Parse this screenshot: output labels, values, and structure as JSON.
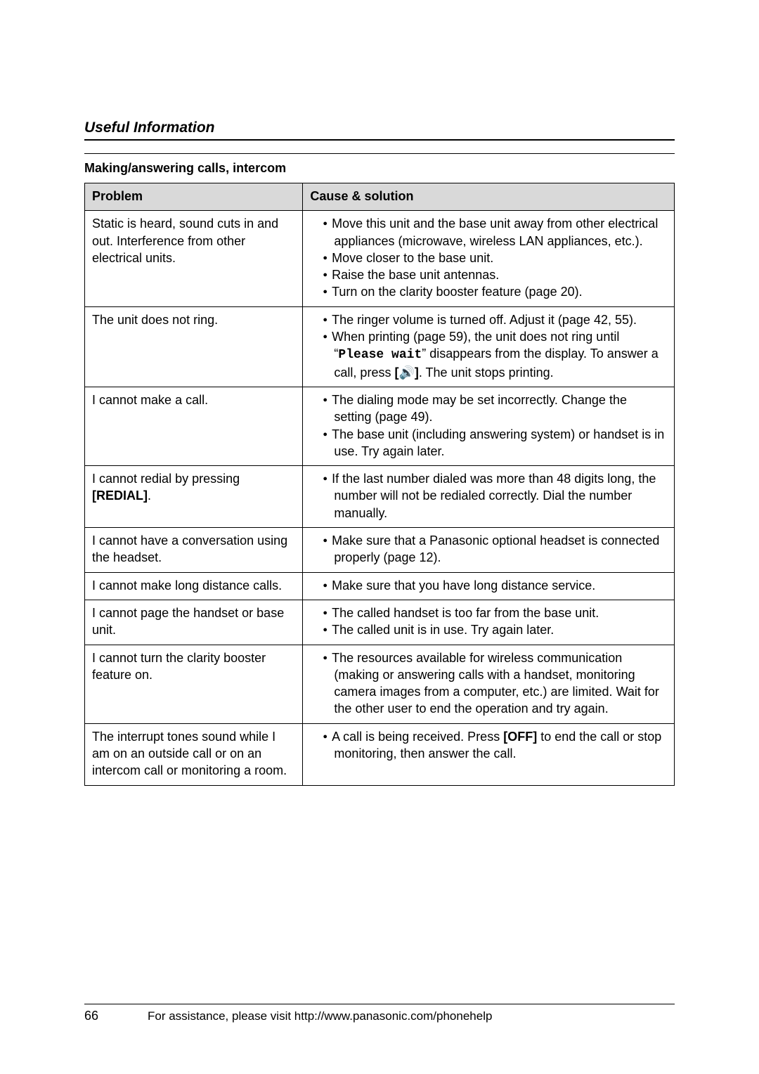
{
  "header": {
    "section_title": "Useful Information"
  },
  "subheading": "Making/answering calls, intercom",
  "table": {
    "headers": {
      "problem": "Problem",
      "cause": "Cause & solution"
    },
    "rows": [
      {
        "problem": "Static is heard, sound cuts in and out. Interference from other electrical units.",
        "cause": [
          "Move this unit and the base unit away from other electrical appliances (microwave, wireless LAN appliances, etc.).",
          "Move closer to the base unit.",
          "Raise the base unit antennas.",
          "Turn on the clarity booster feature (page 20)."
        ]
      },
      {
        "problem": "The unit does not ring.",
        "cause": [
          "The ringer volume is turned off. Adjust it (page 42, 55).",
          "When printing (page 59), the unit does not ring until “<span class=\"mono\">Please wait</span>” disappears from the display. To answer a call, press <b>[</b><span class=\"speaker\">&#x1F50A;</span><b>]</b>. The unit stops printing."
        ]
      },
      {
        "problem": "I cannot make a call.",
        "cause": [
          "The dialing mode may be set incorrectly. Change the setting (page 49).",
          "The base unit (including answering system) or handset is in use. Try again later."
        ]
      },
      {
        "problem": "I cannot redial by pressing <b>[REDIAL]</b>.",
        "cause": [
          "If the last number dialed was more than 48 digits long, the number will not be redialed correctly. Dial the number manually."
        ]
      },
      {
        "problem": "I cannot have a conversation using the headset.",
        "cause": [
          "Make sure that a Panasonic optional headset is connected properly (page 12)."
        ]
      },
      {
        "problem": "I cannot make long distance calls.",
        "cause": [
          "Make sure that you have long distance service."
        ]
      },
      {
        "problem": "I cannot page the handset or base unit.",
        "cause": [
          "The called handset is too far from the base unit.",
          "The called unit is in use. Try again later."
        ]
      },
      {
        "problem": "I cannot turn the clarity booster feature on.",
        "cause": [
          "The resources available for wireless communication (making or answering calls with a handset, monitoring camera images from a computer, etc.) are limited. Wait for the other user to end the operation and try again."
        ]
      },
      {
        "problem": "The interrupt tones sound while I am on an outside call or on an intercom call or monitoring a room.",
        "cause": [
          "A call is being received. Press <b>[OFF]</b> to end the call or stop monitoring, then answer the call."
        ]
      }
    ]
  },
  "footer": {
    "page_number": "66",
    "text": "For assistance, please visit http://www.panasonic.com/phonehelp"
  }
}
